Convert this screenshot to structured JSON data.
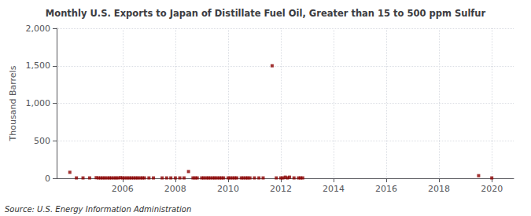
{
  "chart_data": {
    "type": "scatter",
    "title": "Monthly U.S. Exports to Japan of Distillate Fuel Oil, Greater than 15 to 500 ppm Sulfur",
    "ylabel": "Thousand Barrels",
    "annotations": [
      "Source: U.S. Energy Information Administration"
    ],
    "color": "#8b0000",
    "marker": "square",
    "grid": true,
    "xlim": [
      2003.5,
      2020.83
    ],
    "ylim": [
      0,
      2000
    ],
    "xticks": [
      2006,
      2008,
      2010,
      2012,
      2014,
      2016,
      2018,
      2020
    ],
    "yticks": [
      0,
      500,
      {
        "value": 1000,
        "label": "1,000"
      },
      {
        "value": 1500,
        "label": "1,500"
      },
      {
        "value": 2000,
        "label": "2,000"
      }
    ],
    "x": [
      2004.0,
      2004.25,
      2004.5,
      2004.75,
      2005.0,
      2005.08,
      2005.17,
      2005.25,
      2005.33,
      2005.42,
      2005.5,
      2005.58,
      2005.67,
      2005.75,
      2005.83,
      2005.92,
      2006.0,
      2006.08,
      2006.17,
      2006.25,
      2006.33,
      2006.42,
      2006.5,
      2006.58,
      2006.67,
      2006.75,
      2006.83,
      2007.0,
      2007.17,
      2007.5,
      2007.67,
      2007.83,
      2008.0,
      2008.17,
      2008.33,
      2008.5,
      2008.67,
      2008.75,
      2008.83,
      2009.0,
      2009.08,
      2009.17,
      2009.25,
      2009.33,
      2009.42,
      2009.5,
      2009.58,
      2009.67,
      2009.75,
      2009.83,
      2010.0,
      2010.08,
      2010.17,
      2010.25,
      2010.33,
      2010.5,
      2010.58,
      2010.67,
      2010.75,
      2010.83,
      2011.0,
      2011.17,
      2011.33,
      2011.67,
      2011.83,
      2012.0,
      2012.08,
      2012.17,
      2012.25,
      2012.33,
      2012.5,
      2012.67,
      2012.75,
      2012.83,
      2019.5,
      2020.0
    ],
    "values": [
      80,
      5,
      5,
      5,
      8,
      5,
      5,
      5,
      5,
      5,
      5,
      5,
      5,
      5,
      5,
      8,
      5,
      5,
      5,
      5,
      5,
      5,
      5,
      5,
      5,
      5,
      5,
      5,
      5,
      5,
      5,
      5,
      5,
      5,
      5,
      90,
      5,
      5,
      5,
      5,
      5,
      5,
      5,
      5,
      5,
      5,
      5,
      5,
      5,
      5,
      5,
      5,
      5,
      5,
      5,
      5,
      5,
      5,
      5,
      5,
      5,
      5,
      5,
      1500,
      5,
      5,
      5,
      15,
      5,
      15,
      5,
      5,
      5,
      5,
      35,
      5
    ]
  }
}
